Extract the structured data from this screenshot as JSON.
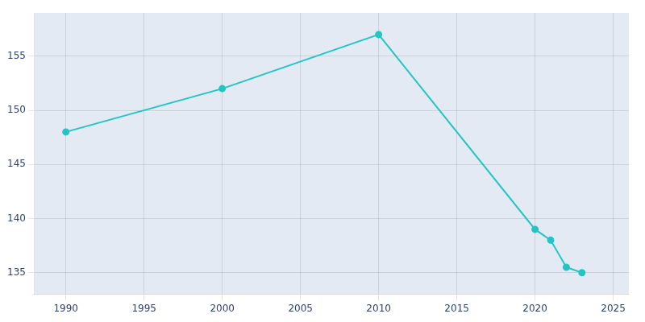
{
  "chart_data": {
    "type": "line",
    "x": [
      1990,
      2000,
      2010,
      2020,
      2021,
      2022,
      2023
    ],
    "values": [
      148,
      152,
      157,
      139,
      138,
      135.5,
      135
    ],
    "color": "#22C4C4",
    "marker": "circle",
    "xlim": [
      1988,
      2026
    ],
    "ylim": [
      133,
      159
    ],
    "xticks": [
      1990,
      1995,
      2000,
      2005,
      2010,
      2015,
      2020,
      2025
    ],
    "yticks": [
      135,
      140,
      145,
      150,
      155
    ],
    "grid": true
  }
}
